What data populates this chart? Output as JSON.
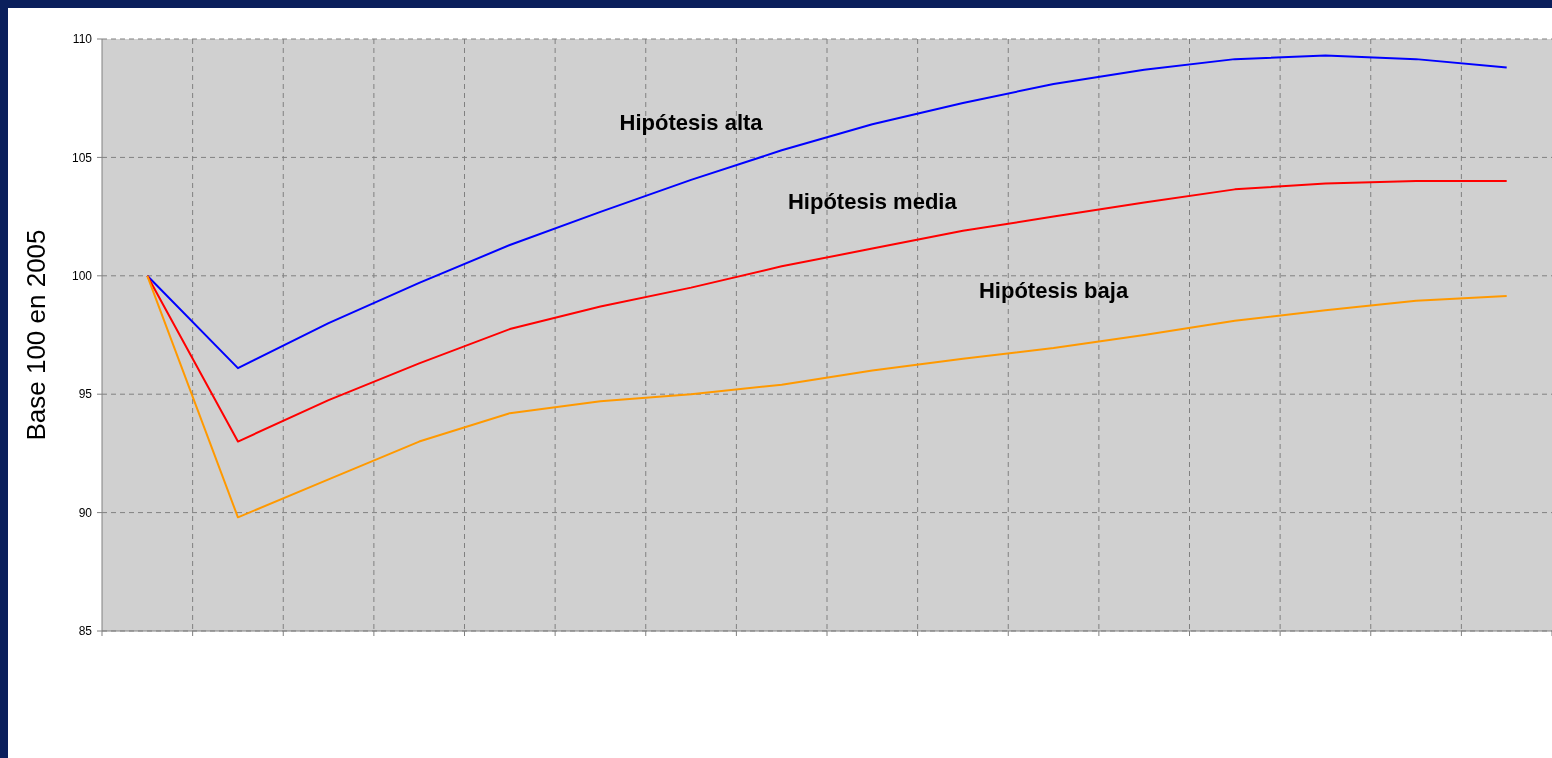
{
  "chart_data": {
    "type": "line",
    "ylabel": "Base 100 en 2005",
    "categories": [
      null,
      null,
      null,
      null,
      null,
      null,
      null,
      null,
      null,
      null,
      null,
      null,
      null,
      null,
      null,
      null
    ],
    "series": [
      {
        "name": "Hipótesis alta",
        "color": "#0000ff",
        "values": [
          100,
          96.1,
          98,
          99.7,
          101.3,
          102.7,
          104.05,
          105.3,
          106.4,
          107.3,
          108.1,
          108.7,
          109.15,
          109.3,
          109.15,
          108.8
        ]
      },
      {
        "name": "Hipótesis media",
        "color": "#ff0000",
        "values": [
          100,
          93,
          94.75,
          96.3,
          97.75,
          98.7,
          99.5,
          100.4,
          101.15,
          101.9,
          102.5,
          103.1,
          103.65,
          103.9,
          104,
          104
        ]
      },
      {
        "name": "Hipótesis baja",
        "color": "#ff9900",
        "values": [
          100,
          89.8,
          91.4,
          93,
          94.2,
          94.7,
          95,
          95.4,
          96,
          96.5,
          96.95,
          97.5,
          98.1,
          98.55,
          98.95,
          99.15
        ]
      }
    ],
    "ylim": [
      85,
      110
    ],
    "yticks": [
      85,
      90,
      95,
      100,
      105,
      110
    ],
    "grid": true,
    "marker": "none",
    "line_style": "solid"
  }
}
